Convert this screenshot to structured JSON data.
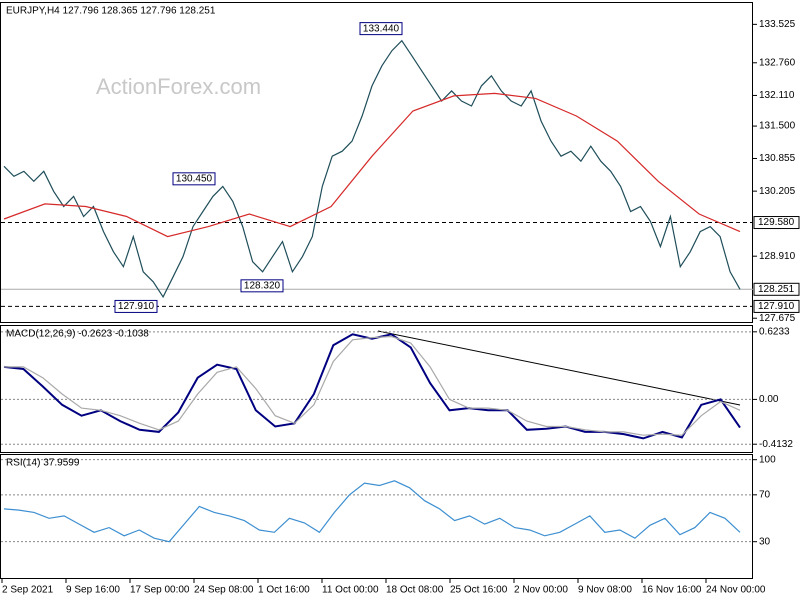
{
  "chart_data": [
    {
      "type": "line",
      "title": "EURJPY,H4  127.796 128.365 127.796 128.251",
      "watermark": "ActionForex.com",
      "ylim": [
        127.6,
        133.95
      ],
      "yticks": [
        133.525,
        {
          "value": 132.76,
          "label": "132.760"
        },
        {
          "value": 132.11,
          "label": "132.110"
        },
        {
          "value": 131.5,
          "label": "131.500"
        },
        130.855,
        130.205,
        {
          "value": 128.91,
          "label": "128.910"
        },
        127.675
      ],
      "series": [
        {
          "color": "#1f4e5a",
          "values": [
            130.7,
            130.5,
            130.6,
            130.4,
            130.6,
            130.2,
            129.9,
            130.1,
            129.7,
            129.9,
            129.4,
            129.0,
            128.7,
            129.3,
            128.6,
            128.4,
            128.1,
            128.5,
            128.9,
            129.5,
            129.8,
            130.1,
            130.3,
            130.0,
            129.5,
            128.8,
            128.6,
            128.9,
            129.2,
            128.6,
            128.9,
            129.3,
            130.3,
            130.9,
            131.0,
            131.2,
            131.7,
            132.3,
            132.7,
            133.0,
            133.2,
            132.9,
            132.6,
            132.3,
            132.0,
            132.2,
            132.0,
            131.9,
            132.3,
            132.5,
            132.2,
            132.0,
            131.9,
            132.2,
            131.6,
            131.2,
            130.9,
            131.0,
            130.8,
            131.1,
            130.8,
            130.6,
            130.3,
            129.8,
            129.9,
            129.6,
            129.1,
            129.7,
            128.7,
            129.0,
            129.4,
            129.5,
            129.3,
            128.6,
            128.25
          ]
        },
        {
          "color": "#d62a2a",
          "values": [
            129.65,
            129.95,
            129.9,
            129.7,
            129.3,
            129.5,
            129.75,
            129.5,
            129.9,
            130.9,
            131.8,
            132.1,
            132.15,
            132.05,
            131.7,
            131.2,
            130.4,
            129.75,
            129.4
          ]
        }
      ],
      "levels": [
        {
          "value": 129.58,
          "label": "129.580",
          "style": "dashed"
        },
        {
          "value": 128.251,
          "label": "128.251",
          "style": "solid"
        },
        {
          "value": 127.91,
          "label": "127.910",
          "style": "dashed"
        }
      ],
      "annotations": [
        {
          "value": 133.44,
          "label": "133.440"
        },
        {
          "value": 130.45,
          "label": "130.450"
        },
        {
          "value": 128.32,
          "label": "128.320"
        },
        {
          "value": 127.91,
          "label": "127.910"
        }
      ]
    },
    {
      "type": "line",
      "title": "MACD(12,26,9) -0.2623 -0.1038",
      "ylim": [
        -0.485,
        0.677
      ],
      "yticks": [
        0.6233,
        {
          "value": 0,
          "label": "0.00"
        },
        -0.4132
      ],
      "grid": true,
      "series": [
        {
          "color": "#000080",
          "values": [
            0.3,
            0.28,
            0.12,
            -0.05,
            -0.15,
            -0.1,
            -0.2,
            -0.28,
            -0.3,
            -0.12,
            0.2,
            0.32,
            0.28,
            -0.1,
            -0.25,
            -0.22,
            0.05,
            0.5,
            0.6,
            0.56,
            0.6,
            0.48,
            0.15,
            -0.1,
            -0.08,
            -0.1,
            -0.1,
            -0.28,
            -0.27,
            -0.25,
            -0.3,
            -0.3,
            -0.32,
            -0.36,
            -0.3,
            -0.35,
            -0.05,
            0.0,
            -0.26
          ]
        },
        {
          "color": "#a9a9a9",
          "values": [
            0.3,
            0.3,
            0.2,
            0.05,
            -0.08,
            -0.1,
            -0.15,
            -0.22,
            -0.28,
            -0.2,
            0.05,
            0.25,
            0.3,
            0.1,
            -0.15,
            -0.22,
            -0.05,
            0.35,
            0.55,
            0.57,
            0.58,
            0.52,
            0.3,
            0.0,
            -0.08,
            -0.08,
            -0.1,
            -0.2,
            -0.25,
            -0.25,
            -0.28,
            -0.3,
            -0.3,
            -0.33,
            -0.32,
            -0.33,
            -0.15,
            -0.02,
            -0.1
          ]
        }
      ]
    },
    {
      "type": "line",
      "title": "RSI(14) 37.9599",
      "ylim": [
        -1,
        104
      ],
      "yticks": [
        100,
        70,
        30
      ],
      "grid": true,
      "series": [
        {
          "color": "#3d8fd1",
          "values": [
            58,
            57,
            55,
            50,
            52,
            45,
            38,
            42,
            35,
            40,
            33,
            30,
            45,
            60,
            55,
            52,
            48,
            40,
            38,
            50,
            46,
            38,
            55,
            70,
            80,
            78,
            82,
            76,
            65,
            58,
            48,
            52,
            45,
            50,
            42,
            40,
            35,
            38,
            45,
            52,
            38,
            40,
            33,
            44,
            50,
            36,
            42,
            55,
            50,
            38
          ]
        }
      ],
      "x_labels": [
        "2 Sep 2021",
        "9 Sep 16:00",
        "17 Sep 00:00",
        "24 Sep 08:00",
        "1 Oct 16:00",
        "11 Oct 00:00",
        "18 Oct 08:00",
        "25 Oct 16:00",
        "2 Nov 00:00",
        "9 Nov 08:00",
        "16 Nov 16:00",
        "24 Nov 00:00"
      ]
    }
  ]
}
